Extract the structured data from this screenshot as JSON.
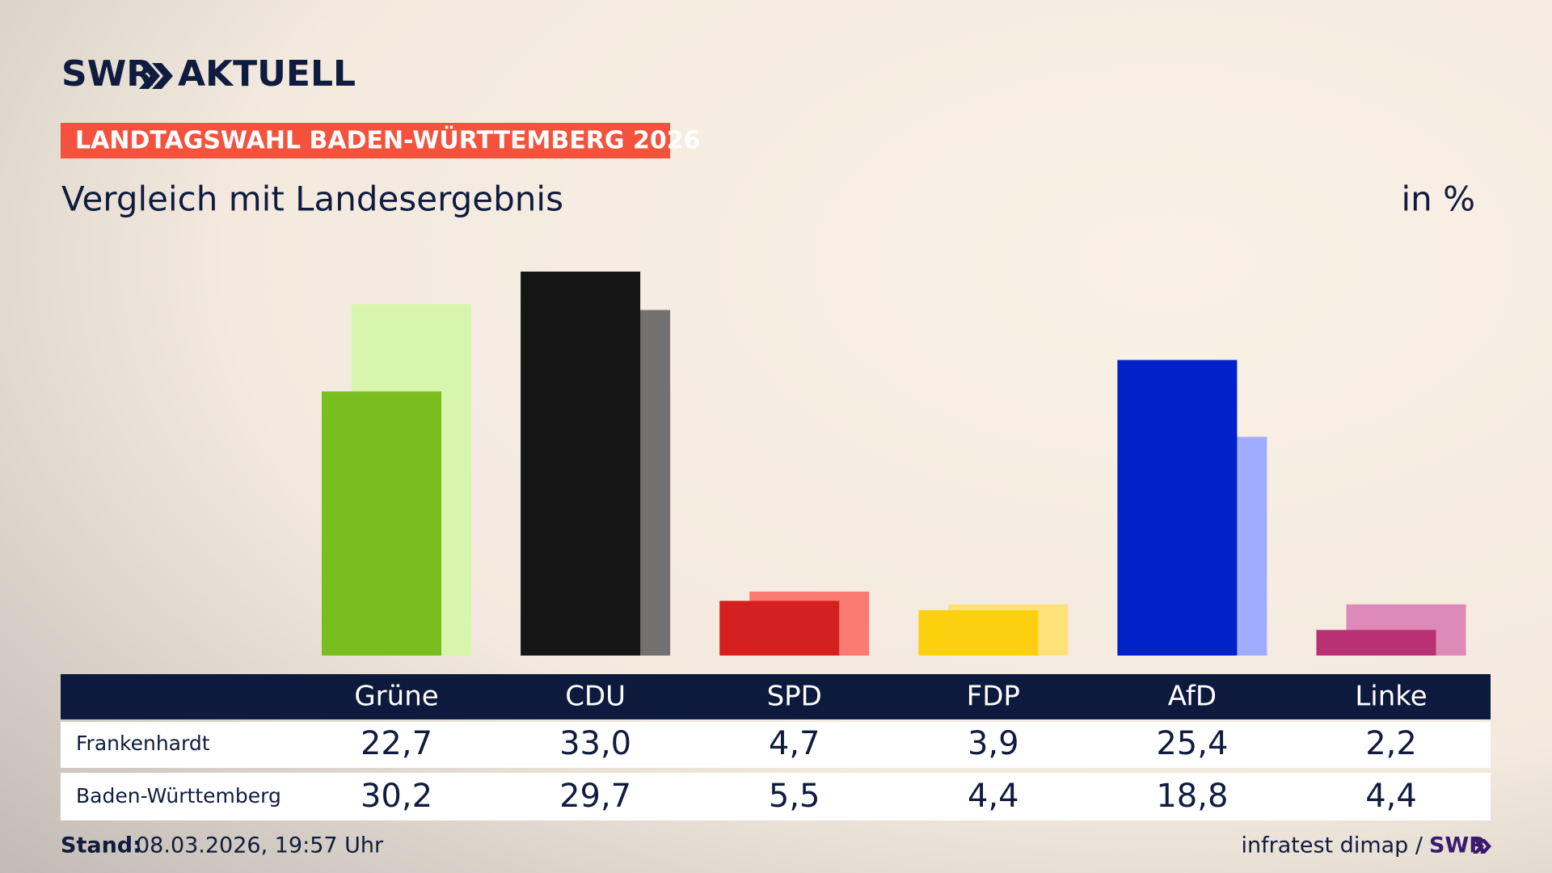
{
  "header": {
    "logo": "SWR",
    "brand": "AKTUELL",
    "kicker": "LANDTAGSWAHL BADEN-WÜRTTEMBERG 2026"
  },
  "chart_data": {
    "type": "bar",
    "title": "Vergleich mit Landesergebnis",
    "unit_label": "in %",
    "categories": [
      "Grüne",
      "CDU",
      "SPD",
      "FDP",
      "AfD",
      "Linke"
    ],
    "series": [
      {
        "name": "Frankenhardt",
        "colors": [
          "#7abd1e",
          "#151515",
          "#d42020",
          "#fdd00f",
          "#0022c8",
          "#b93074"
        ],
        "values": [
          22.7,
          33.0,
          4.7,
          3.9,
          25.4,
          2.2
        ],
        "value_labels": [
          "22,7",
          "33,0",
          "4,7",
          "3,9",
          "25,4",
          "2,2"
        ]
      },
      {
        "name": "Baden-Württemberg",
        "colors": [
          "#d8f5ad",
          "#737070",
          "#fb7a72",
          "#fde27a",
          "#a0acff",
          "#dd8ab8"
        ],
        "values": [
          30.2,
          29.7,
          5.5,
          4.4,
          18.8,
          4.4
        ],
        "value_labels": [
          "30,2",
          "29,7",
          "5,5",
          "4,4",
          "18,8",
          "4,4"
        ]
      }
    ]
  },
  "footer": {
    "stand_label": "Stand:",
    "stand": "08.03.2026, 19:57 Uhr",
    "source": "infratest dimap /",
    "brand": "SWR"
  }
}
